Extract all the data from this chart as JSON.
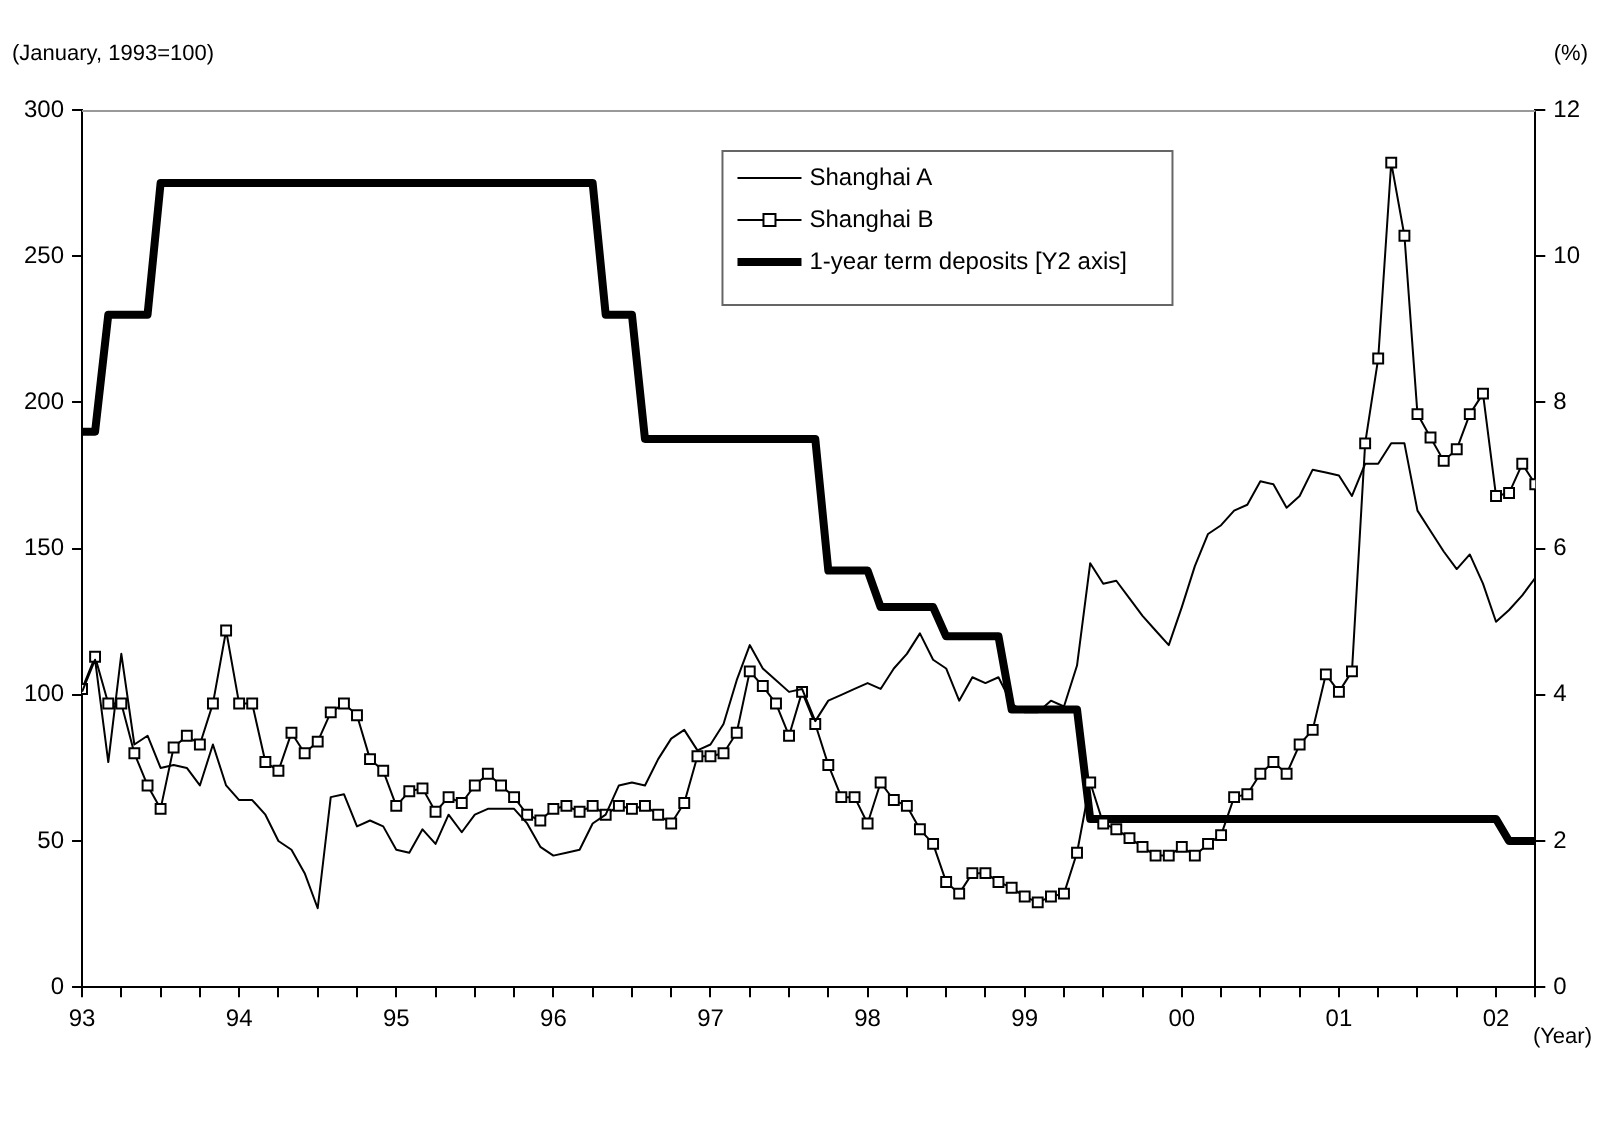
{
  "chart_data": {
    "type": "line",
    "ylabel": "(January, 1993=100)",
    "y2label": "(%)",
    "xlabel": "(Year)",
    "x": [
      1993,
      1993.083,
      1993.167,
      1993.25,
      1993.333,
      1993.417,
      1993.5,
      1993.583,
      1993.667,
      1993.75,
      1993.833,
      1993.917,
      1994,
      1994.083,
      1994.167,
      1994.25,
      1994.333,
      1994.417,
      1994.5,
      1994.583,
      1994.667,
      1994.75,
      1994.833,
      1994.917,
      1995,
      1995.083,
      1995.167,
      1995.25,
      1995.333,
      1995.417,
      1995.5,
      1995.583,
      1995.667,
      1995.75,
      1995.833,
      1995.917,
      1996,
      1996.083,
      1996.167,
      1996.25,
      1996.333,
      1996.417,
      1996.5,
      1996.583,
      1996.667,
      1996.75,
      1996.833,
      1996.917,
      1997,
      1997.083,
      1997.167,
      1997.25,
      1997.333,
      1997.417,
      1997.5,
      1997.583,
      1997.667,
      1997.75,
      1997.833,
      1997.917,
      1998,
      1998.083,
      1998.167,
      1998.25,
      1998.333,
      1998.417,
      1998.5,
      1998.583,
      1998.667,
      1998.75,
      1998.833,
      1998.917,
      1999,
      1999.083,
      1999.167,
      1999.25,
      1999.333,
      1999.417,
      1999.5,
      1999.583,
      1999.667,
      1999.75,
      1999.833,
      1999.917,
      2000,
      2000.083,
      2000.167,
      2000.25,
      2000.333,
      2000.417,
      2000.5,
      2000.583,
      2000.667,
      2000.75,
      2000.833,
      2000.917,
      2001,
      2001.083,
      2001.167,
      2001.25,
      2001.333,
      2001.417,
      2001.5,
      2001.583,
      2001.667,
      2001.75,
      2001.833,
      2001.917,
      2002,
      2002.083,
      2002.167,
      2002.25
    ],
    "series": [
      {
        "name": "Shanghai A",
        "color": "#000000",
        "marker": "none",
        "values": [
          101,
          112,
          77,
          114,
          83,
          86,
          75,
          76,
          75,
          69,
          83,
          69,
          64,
          64,
          59,
          50,
          47,
          39,
          27,
          65,
          66,
          55,
          57,
          55,
          47,
          46,
          54,
          49,
          59,
          53,
          59,
          61,
          61,
          61,
          56,
          48,
          45,
          46,
          47,
          56,
          59,
          69,
          70,
          69,
          78,
          85,
          88,
          81,
          83,
          90,
          105,
          117,
          109,
          105,
          101,
          102,
          91,
          98,
          100,
          102,
          104,
          102,
          109,
          114,
          121,
          112,
          109,
          98,
          106,
          104,
          106,
          97,
          94,
          94,
          98,
          96,
          110,
          145,
          138,
          139,
          133,
          127,
          122,
          117,
          130,
          144,
          155,
          158,
          163,
          165,
          173,
          172,
          164,
          168,
          177,
          176,
          175,
          168,
          179,
          179,
          186,
          186,
          163,
          156,
          149,
          143,
          148,
          138,
          125,
          129,
          134,
          140
        ]
      },
      {
        "name": "Shanghai B",
        "color": "#000000",
        "marker": "square",
        "values": [
          102,
          113,
          97,
          97,
          80,
          69,
          61,
          82,
          86,
          83,
          97,
          122,
          97,
          97,
          77,
          74,
          87,
          80,
          84,
          94,
          97,
          93,
          78,
          74,
          62,
          67,
          68,
          60,
          65,
          63,
          69,
          73,
          69,
          65,
          59,
          57,
          61,
          62,
          60,
          62,
          59,
          62,
          61,
          62,
          59,
          56,
          63,
          79,
          79,
          80,
          87,
          108,
          103,
          97,
          86,
          101,
          90,
          76,
          65,
          65,
          56,
          70,
          64,
          62,
          54,
          49,
          36,
          32,
          39,
          39,
          36,
          34,
          31,
          29,
          31,
          32,
          46,
          70,
          56,
          54,
          51,
          48,
          45,
          45,
          48,
          45,
          49,
          52,
          65,
          66,
          73,
          77,
          73,
          83,
          88,
          107,
          101,
          108,
          186,
          215,
          282,
          257,
          196,
          188,
          180,
          184,
          196,
          203,
          168,
          169,
          179,
          172
        ]
      },
      {
        "name": "1-year term deposits [Y2 axis]",
        "color": "#000000",
        "marker": "none",
        "axis": "y2",
        "values": [
          7.6,
          7.6,
          9.2,
          9.2,
          9.2,
          9.2,
          11.0,
          11.0,
          11.0,
          11.0,
          11.0,
          11.0,
          11.0,
          11.0,
          11.0,
          11.0,
          11.0,
          11.0,
          11.0,
          11.0,
          11.0,
          11.0,
          11.0,
          11.0,
          11.0,
          11.0,
          11.0,
          11.0,
          11.0,
          11.0,
          11.0,
          11.0,
          11.0,
          11.0,
          11.0,
          11.0,
          11.0,
          11.0,
          11.0,
          11.0,
          9.2,
          9.2,
          9.2,
          7.5,
          7.5,
          7.5,
          7.5,
          7.5,
          7.5,
          7.5,
          7.5,
          7.5,
          7.5,
          7.5,
          7.5,
          7.5,
          7.5,
          5.7,
          5.7,
          5.7,
          5.7,
          5.2,
          5.2,
          5.2,
          5.2,
          5.2,
          4.8,
          4.8,
          4.8,
          4.8,
          4.8,
          3.8,
          3.8,
          3.8,
          3.8,
          3.8,
          3.8,
          2.3,
          2.3,
          2.3,
          2.3,
          2.3,
          2.3,
          2.3,
          2.3,
          2.3,
          2.3,
          2.3,
          2.3,
          2.3,
          2.3,
          2.3,
          2.3,
          2.3,
          2.3,
          2.3,
          2.3,
          2.3,
          2.3,
          2.3,
          2.3,
          2.3,
          2.3,
          2.3,
          2.3,
          2.3,
          2.3,
          2.3,
          2.3,
          2.0,
          2.0,
          2.0
        ]
      }
    ],
    "xlim": [
      1993,
      2002.25
    ],
    "xticks": [
      {
        "value": 1993,
        "label": "93"
      },
      {
        "value": 1993.25,
        "label": null
      },
      {
        "value": 1993.5,
        "label": null
      },
      {
        "value": 1993.75,
        "label": null
      },
      {
        "value": 1994,
        "label": "94"
      },
      {
        "value": 1994.25,
        "label": null
      },
      {
        "value": 1994.5,
        "label": null
      },
      {
        "value": 1994.75,
        "label": null
      },
      {
        "value": 1995,
        "label": "95"
      },
      {
        "value": 1995.25,
        "label": null
      },
      {
        "value": 1995.5,
        "label": null
      },
      {
        "value": 1995.75,
        "label": null
      },
      {
        "value": 1996,
        "label": "96"
      },
      {
        "value": 1996.25,
        "label": null
      },
      {
        "value": 1996.5,
        "label": null
      },
      {
        "value": 1996.75,
        "label": null
      },
      {
        "value": 1997,
        "label": "97"
      },
      {
        "value": 1997.25,
        "label": null
      },
      {
        "value": 1997.5,
        "label": null
      },
      {
        "value": 1997.75,
        "label": null
      },
      {
        "value": 1998,
        "label": "98"
      },
      {
        "value": 1998.25,
        "label": null
      },
      {
        "value": 1998.5,
        "label": null
      },
      {
        "value": 1998.75,
        "label": null
      },
      {
        "value": 1999,
        "label": "99"
      },
      {
        "value": 1999.25,
        "label": null
      },
      {
        "value": 1999.5,
        "label": null
      },
      {
        "value": 1999.75,
        "label": null
      },
      {
        "value": 2000,
        "label": "00"
      },
      {
        "value": 2000.25,
        "label": null
      },
      {
        "value": 2000.5,
        "label": null
      },
      {
        "value": 2000.75,
        "label": null
      },
      {
        "value": 2001,
        "label": "01"
      },
      {
        "value": 2001.25,
        "label": null
      },
      {
        "value": 2001.5,
        "label": null
      },
      {
        "value": 2001.75,
        "label": null
      },
      {
        "value": 2002,
        "label": "02"
      },
      {
        "value": 2002.25,
        "label": null
      }
    ],
    "ylim": [
      0,
      300
    ],
    "yticks": [
      0,
      50,
      100,
      150,
      200,
      250,
      300
    ],
    "y2lim": [
      0,
      12
    ],
    "y2ticks": [
      0,
      2,
      4,
      6,
      8,
      10,
      12
    ],
    "grid": false,
    "legend": "top right"
  }
}
